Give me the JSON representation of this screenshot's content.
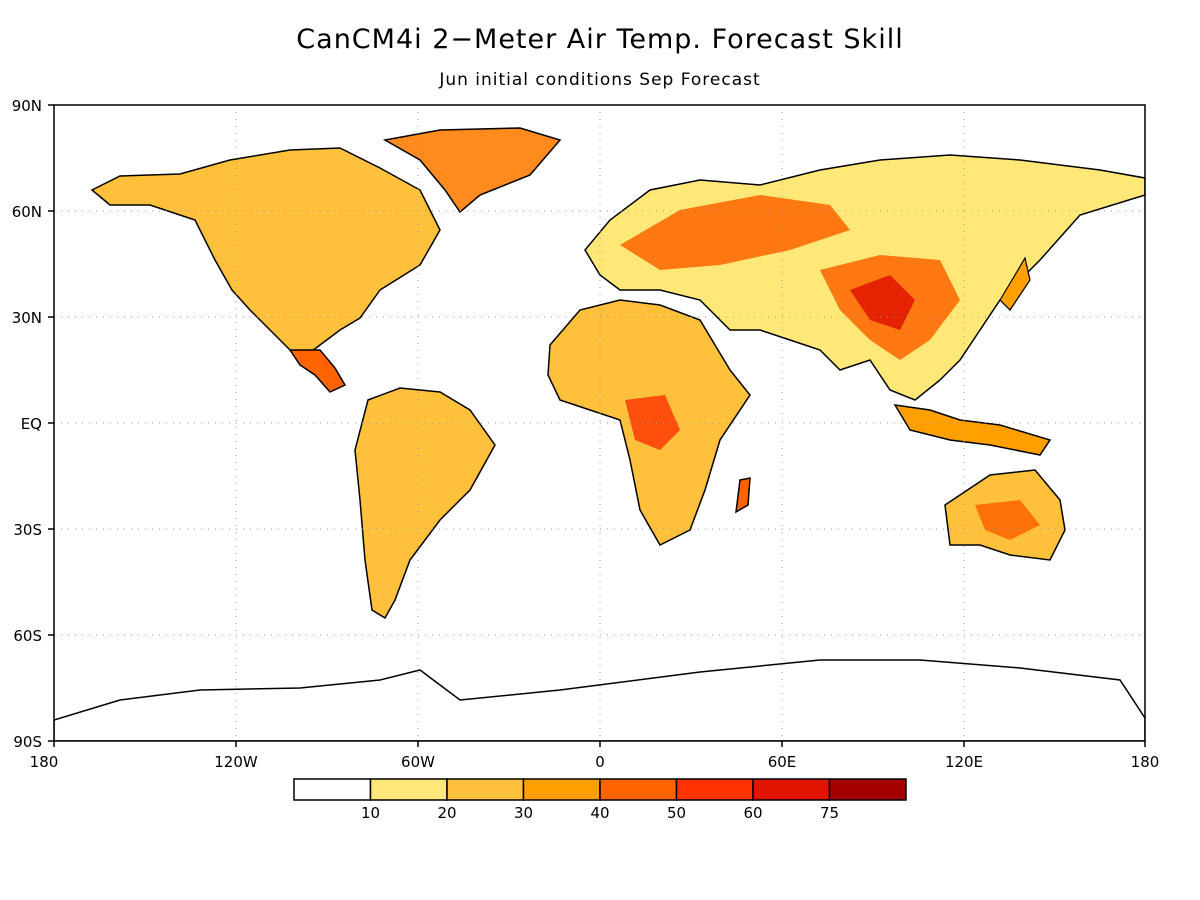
{
  "title": "CanCM4i 2−Meter Air Temp. Forecast Skill",
  "subtitle": "Jun initial conditions  Sep Forecast",
  "axes": {
    "lat_ticks": [
      "90N",
      "60N",
      "30N",
      "EQ",
      "30S",
      "60S",
      "90S"
    ],
    "lon_ticks": [
      "180",
      "120W",
      "60W",
      "0",
      "60E",
      "120E",
      "180"
    ]
  },
  "legend": {
    "colors": [
      "#ffffff",
      "#ffe878",
      "#ffc03c",
      "#ffa000",
      "#ff6400",
      "#ff3200",
      "#e11400",
      "#a50000"
    ],
    "labels": [
      "10",
      "20",
      "30",
      "40",
      "50",
      "60",
      "75"
    ]
  },
  "colors": {
    "land_outline": "#000000",
    "grid": "#9a9a9a"
  }
}
